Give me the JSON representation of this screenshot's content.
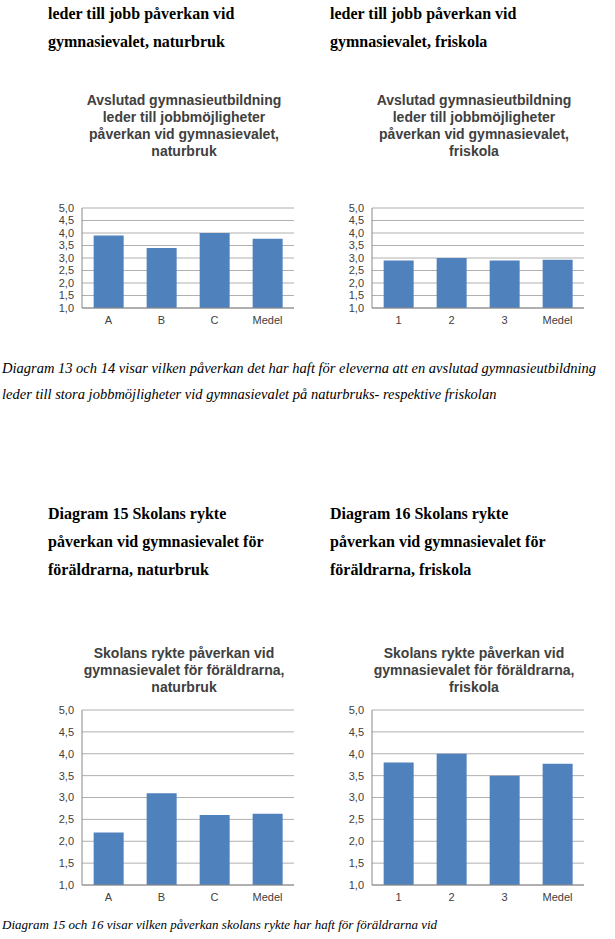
{
  "headings": [
    "leder till jobb påverkan vid gymnasievalet, naturbruk",
    "leder till jobb påverkan vid gymnasievalet, friskola",
    "Diagram 15 Skolans rykte påverkan vid gymnasievalet för föräldrarna, naturbruk",
    "Diagram 16 Skolans rykte påverkan vid gymnasievalet för föräldrarna, friskola"
  ],
  "captions": [
    "Diagram 13 och 14 visar vilken påverkan det har haft för eleverna att en avslutad gymnasieutbildning leder till stora jobbmöjligheter vid gymnasievalet på naturbruks- respektive friskolan",
    "Diagram 15 och 16 visar vilken påverkan skolans rykte har haft för föräldrarna vid"
  ],
  "chart_data": [
    {
      "type": "bar",
      "title": "Avslutad gymnasieutbildning leder till jobbmöjligheter påverkan vid gymnasievalet, naturbruk",
      "categories": [
        "A",
        "B",
        "C",
        "Medel"
      ],
      "values": [
        3.9,
        3.4,
        4.0,
        3.77
      ],
      "color": "#4f81bd",
      "ylim": [
        1,
        5
      ],
      "yticks": [
        {
          "value": 1,
          "label": "1,0"
        },
        {
          "value": 1.5,
          "label": "1,5"
        },
        {
          "value": 2,
          "label": "2,0"
        },
        {
          "value": 2.5,
          "label": "2,5"
        },
        {
          "value": 3,
          "label": "3,0"
        },
        {
          "value": 3.5,
          "label": "3,5"
        },
        {
          "value": 4,
          "label": "4,0"
        },
        {
          "value": 4.5,
          "label": "4,5"
        },
        {
          "value": 5,
          "label": "5,0"
        }
      ],
      "grid": true
    },
    {
      "type": "bar",
      "title": "Avslutad gymnasieutbildning leder till jobbmöjligheter påverkan vid gymnasievalet, friskola",
      "categories": [
        "1",
        "2",
        "3",
        "Medel"
      ],
      "values": [
        2.9,
        3.0,
        2.9,
        2.93
      ],
      "color": "#4f81bd",
      "ylim": [
        1,
        5
      ],
      "yticks": [
        {
          "value": 1,
          "label": "1,0"
        },
        {
          "value": 1.5,
          "label": "1,5"
        },
        {
          "value": 2,
          "label": "2,0"
        },
        {
          "value": 2.5,
          "label": "2,5"
        },
        {
          "value": 3,
          "label": "3,0"
        },
        {
          "value": 3.5,
          "label": "3,5"
        },
        {
          "value": 4,
          "label": "4,0"
        },
        {
          "value": 4.5,
          "label": "4,5"
        },
        {
          "value": 5,
          "label": "5,0"
        }
      ],
      "grid": true
    },
    {
      "type": "bar",
      "title": "Skolans rykte påverkan vid gymnasievalet för föräldrarna, naturbruk",
      "categories": [
        "A",
        "B",
        "C",
        "Medel"
      ],
      "values": [
        2.2,
        3.1,
        2.6,
        2.63
      ],
      "color": "#4f81bd",
      "ylim": [
        1,
        5
      ],
      "yticks": [
        {
          "value": 1,
          "label": "1,0"
        },
        {
          "value": 1.5,
          "label": "1,5"
        },
        {
          "value": 2,
          "label": "2,0"
        },
        {
          "value": 2.5,
          "label": "2,5"
        },
        {
          "value": 3,
          "label": "3,0"
        },
        {
          "value": 3.5,
          "label": "3,5"
        },
        {
          "value": 4,
          "label": "4,0"
        },
        {
          "value": 4.5,
          "label": "4,5"
        },
        {
          "value": 5,
          "label": "5,0"
        }
      ],
      "grid": true
    },
    {
      "type": "bar",
      "title": "Skolans rykte påverkan vid gymnasievalet för föräldrarna, friskola",
      "categories": [
        "1",
        "2",
        "3",
        "Medel"
      ],
      "values": [
        3.8,
        4.0,
        3.5,
        3.77
      ],
      "color": "#4f81bd",
      "ylim": [
        1,
        5
      ],
      "yticks": [
        {
          "value": 1,
          "label": "1,0"
        },
        {
          "value": 1.5,
          "label": "1,5"
        },
        {
          "value": 2,
          "label": "2,0"
        },
        {
          "value": 2.5,
          "label": "2,5"
        },
        {
          "value": 3,
          "label": "3,0"
        },
        {
          "value": 3.5,
          "label": "3,5"
        },
        {
          "value": 4,
          "label": "4,0"
        },
        {
          "value": 4.5,
          "label": "4,5"
        },
        {
          "value": 5,
          "label": "5,0"
        }
      ],
      "grid": true
    }
  ]
}
